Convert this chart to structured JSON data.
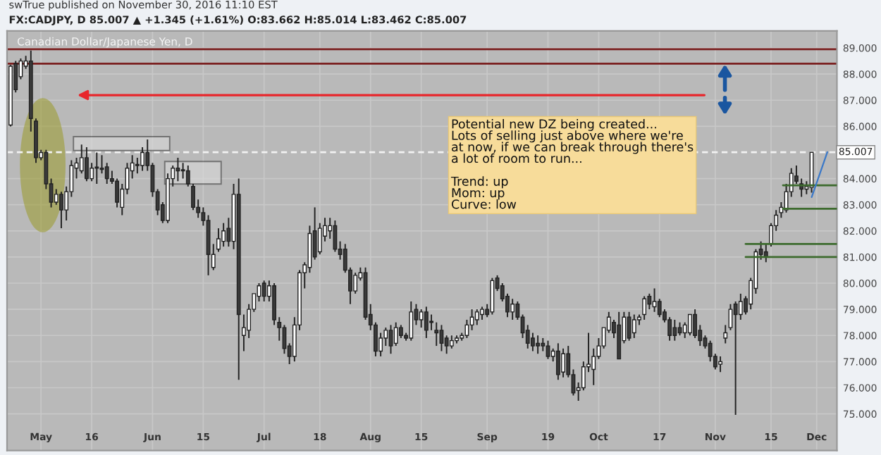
{
  "chart_data": {
    "type": "candlestick",
    "title": "Canadian Dollar/Japanese Yen, D",
    "subtitle": "FX:CADJPY, D 85.007 ▲ +1.345 (+1.61%) O:83.662 H:85.014 L:83.462 C:85.007",
    "annotations": [
      "swTrue published on November 30, 2016 11:10 EST",
      "Potential new DZ being created...\nLots of selling just above where we're\nat now, if we can break through there's\na lot of room to run...\n\nTrend: up\nMom: up\nCurve: low"
    ],
    "categories": [
      null,
      null,
      null,
      null,
      null,
      null,
      "May",
      null,
      null,
      null,
      null,
      null,
      null,
      null,
      null,
      null,
      "16",
      null,
      null,
      null,
      null,
      null,
      null,
      null,
      null,
      null,
      null,
      null,
      "Jun",
      null,
      null,
      null,
      null,
      null,
      null,
      null,
      null,
      null,
      "15",
      null,
      null,
      null,
      null,
      null,
      null,
      null,
      null,
      null,
      null,
      null,
      "Jul",
      null,
      null,
      null,
      null,
      null,
      null,
      null,
      null,
      null,
      null,
      "18",
      null,
      null,
      null,
      null,
      null,
      null,
      null,
      null,
      null,
      "Aug",
      null,
      null,
      null,
      null,
      null,
      null,
      null,
      null,
      null,
      "15",
      null,
      null,
      null,
      null,
      null,
      null,
      null,
      null,
      null,
      null,
      null,
      null,
      "Sep",
      null,
      null,
      null,
      null,
      null,
      null,
      null,
      null,
      null,
      null,
      null,
      "19",
      null,
      null,
      null,
      null,
      null,
      null,
      null,
      null,
      null,
      "Oct",
      null,
      null,
      null,
      null,
      null,
      null,
      null,
      null,
      null,
      null,
      null,
      "17",
      null,
      null,
      null,
      null,
      null,
      null,
      null,
      null,
      null,
      null,
      "Nov",
      null,
      null,
      null,
      null,
      null,
      null,
      null,
      null,
      null,
      null,
      "15",
      null,
      null,
      null,
      null,
      null,
      null,
      null,
      null,
      "Dec"
    ],
    "ohlc": [
      [
        86.05,
        88.35,
        86.0,
        88.3
      ],
      [
        88.4,
        88.5,
        87.3,
        87.4
      ],
      [
        87.9,
        88.6,
        87.8,
        88.5
      ],
      [
        88.3,
        88.7,
        88.2,
        88.5
      ],
      [
        88.5,
        88.9,
        85.8,
        86.3
      ],
      [
        86.2,
        86.3,
        84.6,
        84.8
      ],
      [
        84.8,
        85.1,
        84.7,
        85.0
      ],
      [
        85.0,
        85.1,
        83.6,
        83.8
      ],
      [
        83.8,
        84.0,
        82.9,
        83.1
      ],
      [
        83.1,
        83.6,
        83.0,
        83.4
      ],
      [
        83.4,
        83.5,
        82.1,
        82.8
      ],
      [
        82.8,
        83.7,
        82.4,
        83.5
      ],
      [
        83.5,
        84.7,
        83.3,
        84.5
      ],
      [
        84.4,
        84.8,
        84.0,
        84.6
      ],
      [
        84.3,
        85.3,
        84.2,
        84.8
      ],
      [
        84.8,
        85.2,
        83.9,
        84.0
      ],
      [
        84.0,
        84.6,
        83.9,
        84.4
      ],
      [
        84.4,
        85.0,
        83.8,
        84.4
      ],
      [
        84.4,
        84.9,
        84.2,
        84.35
      ],
      [
        84.45,
        84.6,
        83.8,
        84.0
      ],
      [
        84.0,
        84.3,
        83.8,
        83.9
      ],
      [
        83.9,
        84.0,
        82.9,
        83.1
      ],
      [
        82.9,
        83.8,
        82.6,
        83.6
      ],
      [
        83.6,
        84.6,
        83.4,
        84.4
      ],
      [
        84.3,
        84.9,
        84.0,
        84.6
      ],
      [
        84.5,
        84.8,
        84.2,
        84.5
      ],
      [
        84.5,
        85.2,
        84.3,
        85.0
      ],
      [
        85.0,
        85.5,
        84.3,
        84.5
      ],
      [
        84.5,
        84.6,
        83.3,
        83.5
      ],
      [
        83.5,
        83.6,
        82.6,
        82.8
      ],
      [
        83.0,
        83.1,
        82.3,
        82.4
      ],
      [
        82.4,
        84.2,
        82.3,
        84.0
      ],
      [
        84.0,
        84.5,
        83.7,
        84.4
      ],
      [
        84.4,
        84.8,
        83.9,
        84.3
      ],
      [
        84.3,
        84.6,
        84.0,
        84.3
      ],
      [
        84.3,
        84.5,
        83.7,
        83.8
      ],
      [
        83.7,
        83.8,
        82.8,
        82.9
      ],
      [
        82.9,
        83.2,
        82.5,
        82.7
      ],
      [
        82.7,
        82.9,
        82.2,
        82.4
      ],
      [
        82.4,
        82.6,
        80.3,
        81.1
      ],
      [
        80.6,
        81.5,
        80.5,
        81.1
      ],
      [
        81.3,
        82.1,
        81.2,
        81.7
      ],
      [
        81.6,
        82.3,
        81.4,
        82.0
      ],
      [
        82.1,
        82.5,
        81.4,
        81.6
      ],
      [
        81.6,
        83.8,
        81.3,
        83.4
      ],
      [
        83.4,
        84.0,
        76.3,
        78.8
      ],
      [
        78.0,
        78.8,
        77.4,
        78.3
      ],
      [
        78.2,
        79.2,
        77.9,
        79.0
      ],
      [
        79.0,
        79.6,
        78.9,
        79.6
      ],
      [
        79.5,
        80.0,
        79.3,
        79.9
      ],
      [
        80.0,
        80.1,
        79.3,
        79.5
      ],
      [
        79.5,
        80.1,
        79.3,
        79.9
      ],
      [
        79.9,
        80.0,
        78.4,
        78.6
      ],
      [
        78.5,
        78.7,
        77.8,
        78.3
      ],
      [
        78.3,
        78.4,
        77.3,
        77.5
      ],
      [
        77.6,
        77.7,
        76.9,
        77.2
      ],
      [
        77.2,
        78.7,
        77.0,
        78.4
      ],
      [
        78.4,
        80.5,
        78.2,
        80.4
      ],
      [
        80.4,
        80.8,
        79.8,
        80.7
      ],
      [
        80.6,
        82.2,
        80.4,
        81.9
      ],
      [
        82.0,
        82.9,
        80.9,
        81.0
      ],
      [
        81.2,
        82.3,
        81.1,
        82.1
      ],
      [
        81.8,
        82.5,
        81.6,
        82.2
      ],
      [
        82.0,
        82.5,
        81.7,
        82.2
      ],
      [
        82.2,
        82.4,
        81.2,
        81.3
      ],
      [
        81.3,
        81.6,
        80.9,
        81.1
      ],
      [
        81.3,
        81.5,
        80.4,
        80.5
      ],
      [
        80.5,
        80.6,
        79.2,
        79.7
      ],
      [
        79.7,
        80.4,
        79.6,
        80.3
      ],
      [
        80.2,
        80.6,
        80.1,
        80.4
      ],
      [
        80.4,
        80.6,
        78.6,
        78.7
      ],
      [
        78.8,
        79.2,
        78.2,
        78.4
      ],
      [
        78.4,
        78.5,
        77.2,
        77.4
      ],
      [
        77.4,
        78.1,
        77.2,
        77.9
      ],
      [
        77.9,
        78.3,
        77.6,
        78.2
      ],
      [
        78.2,
        78.4,
        77.3,
        77.6
      ],
      [
        77.7,
        78.5,
        77.6,
        78.3
      ],
      [
        78.3,
        78.4,
        77.9,
        78.0
      ],
      [
        78.0,
        78.1,
        77.8,
        77.9
      ],
      [
        77.9,
        79.3,
        77.8,
        78.9
      ],
      [
        79.0,
        79.2,
        78.4,
        78.6
      ],
      [
        78.6,
        79.0,
        78.3,
        78.9
      ],
      [
        78.9,
        79.1,
        77.9,
        78.2
      ],
      [
        78.5,
        78.8,
        78.2,
        78.5
      ],
      [
        78.2,
        78.5,
        77.6,
        78.1
      ],
      [
        78.2,
        78.4,
        77.4,
        77.7
      ],
      [
        77.9,
        78.0,
        77.3,
        77.6
      ],
      [
        77.6,
        78.0,
        77.5,
        77.8
      ],
      [
        77.8,
        78.0,
        77.7,
        77.9
      ],
      [
        77.9,
        78.1,
        77.8,
        78.0
      ],
      [
        78.0,
        78.6,
        77.9,
        78.4
      ],
      [
        78.4,
        79.0,
        78.2,
        78.7
      ],
      [
        78.6,
        79.0,
        78.4,
        78.9
      ],
      [
        78.8,
        79.1,
        78.6,
        79.0
      ],
      [
        79.0,
        79.2,
        78.7,
        78.8
      ],
      [
        78.9,
        80.2,
        78.8,
        80.1
      ],
      [
        80.2,
        80.3,
        79.7,
        79.8
      ],
      [
        79.9,
        80.0,
        79.3,
        79.4
      ],
      [
        79.5,
        79.6,
        78.7,
        78.9
      ],
      [
        78.9,
        79.4,
        78.6,
        79.2
      ],
      [
        79.2,
        79.3,
        78.6,
        78.7
      ],
      [
        78.7,
        78.8,
        77.9,
        78.1
      ],
      [
        78.2,
        78.4,
        77.5,
        77.7
      ],
      [
        77.9,
        78.1,
        77.4,
        77.6
      ],
      [
        77.7,
        78.0,
        77.3,
        77.6
      ],
      [
        77.7,
        77.9,
        77.4,
        77.6
      ],
      [
        77.6,
        77.8,
        77.1,
        77.2
      ],
      [
        77.2,
        77.5,
        77.0,
        77.4
      ],
      [
        77.4,
        77.7,
        76.3,
        76.5
      ],
      [
        76.6,
        77.5,
        76.4,
        77.3
      ],
      [
        77.3,
        77.6,
        76.4,
        76.5
      ],
      [
        76.5,
        76.7,
        75.7,
        75.8
      ],
      [
        75.9,
        76.2,
        75.5,
        76.0
      ],
      [
        76.0,
        77.0,
        75.9,
        76.8
      ],
      [
        76.8,
        78.1,
        76.6,
        76.9
      ],
      [
        76.7,
        77.5,
        76.1,
        77.2
      ],
      [
        77.2,
        77.9,
        77.1,
        77.6
      ],
      [
        77.6,
        78.3,
        77.5,
        78.3
      ],
      [
        78.2,
        78.9,
        78.1,
        78.7
      ],
      [
        78.5,
        78.6,
        77.9,
        78.1
      ],
      [
        78.4,
        78.9,
        77.1,
        77.1
      ],
      [
        77.8,
        78.9,
        77.7,
        78.7
      ],
      [
        78.7,
        78.9,
        77.8,
        77.9
      ],
      [
        78.1,
        78.8,
        77.9,
        78.6
      ],
      [
        78.6,
        78.8,
        78.4,
        78.7
      ],
      [
        78.8,
        79.5,
        78.6,
        79.4
      ],
      [
        79.5,
        79.6,
        79.0,
        79.2
      ],
      [
        79.1,
        79.8,
        78.9,
        79.3
      ],
      [
        79.3,
        79.4,
        78.7,
        78.8
      ],
      [
        78.9,
        79.0,
        78.5,
        78.6
      ],
      [
        78.6,
        78.7,
        77.8,
        78.0
      ],
      [
        78.3,
        78.6,
        77.8,
        78.0
      ],
      [
        78.3,
        78.5,
        78.0,
        78.1
      ],
      [
        78.1,
        78.5,
        77.9,
        78.4
      ],
      [
        78.1,
        78.8,
        78.0,
        78.8
      ],
      [
        78.8,
        79.0,
        77.9,
        78.0
      ],
      [
        78.2,
        78.4,
        77.6,
        77.8
      ],
      [
        77.9,
        78.0,
        77.5,
        77.6
      ],
      [
        77.7,
        77.8,
        77.0,
        77.2
      ],
      [
        77.2,
        77.3,
        76.7,
        76.8
      ],
      [
        76.9,
        77.2,
        76.6,
        77.0
      ],
      [
        77.9,
        78.4,
        77.7,
        78.1
      ],
      [
        78.3,
        79.2,
        78.2,
        79.0
      ],
      [
        79.2,
        79.3,
        74.96,
        78.8
      ],
      [
        78.8,
        79.6,
        78.6,
        79.3
      ],
      [
        79.4,
        79.5,
        78.8,
        78.9
      ],
      [
        79.2,
        80.2,
        79.0,
        80.1
      ],
      [
        79.8,
        81.3,
        79.6,
        81.2
      ],
      [
        81.3,
        81.6,
        80.9,
        81.1
      ],
      [
        81.2,
        81.5,
        80.8,
        81.0
      ],
      [
        81.5,
        82.3,
        81.4,
        82.2
      ],
      [
        82.2,
        82.8,
        82.0,
        82.6
      ],
      [
        82.7,
        83.1,
        82.5,
        82.9
      ],
      [
        82.8,
        83.8,
        82.7,
        83.5
      ],
      [
        83.5,
        84.4,
        83.3,
        84.2
      ],
      [
        84.1,
        84.5,
        83.8,
        83.9
      ],
      [
        83.8,
        84.0,
        83.3,
        83.6
      ],
      [
        83.6,
        83.9,
        83.4,
        83.7
      ],
      [
        83.662,
        85.014,
        83.462,
        85.007
      ],
      null
    ],
    "ylim": [
      73.6,
      89.65
    ],
    "yticks": [
      {
        "value": 75,
        "label": "75.000"
      },
      {
        "value": 76,
        "label": "76.000"
      },
      {
        "value": 77,
        "label": "77.000"
      },
      {
        "value": 78,
        "label": "78.000"
      },
      {
        "value": 79,
        "label": "79.000"
      },
      {
        "value": 80,
        "label": "80.000"
      },
      {
        "value": 81,
        "label": "81.000"
      },
      {
        "value": 82,
        "label": "82.000"
      },
      {
        "value": 83,
        "label": "83.000"
      },
      {
        "value": 84,
        "label": "84.000"
      },
      {
        "value": 86,
        "label": "86.000"
      },
      {
        "value": 87,
        "label": "87.000"
      },
      {
        "value": 88,
        "label": "88.000"
      },
      {
        "value": 89,
        "label": "89.000"
      }
    ],
    "ref_lines": [
      {
        "axis": "y",
        "value": 88.95,
        "color": "#7a1f1f",
        "line_style": "solid"
      },
      {
        "axis": "y",
        "value": 88.4,
        "color": "#7a1f1f",
        "line_style": "solid"
      },
      {
        "axis": "y",
        "value": 85.007,
        "label": "85.007",
        "color": "#f2f2f2",
        "line_style": "dashed"
      },
      {
        "axis": "y",
        "value": 81.5,
        "color": "#3d6b2e",
        "line_style": "solid"
      },
      {
        "axis": "y",
        "value": 81.0,
        "color": "#3d6b2e",
        "line_style": "solid"
      }
    ],
    "grid": true,
    "legend": false
  }
}
